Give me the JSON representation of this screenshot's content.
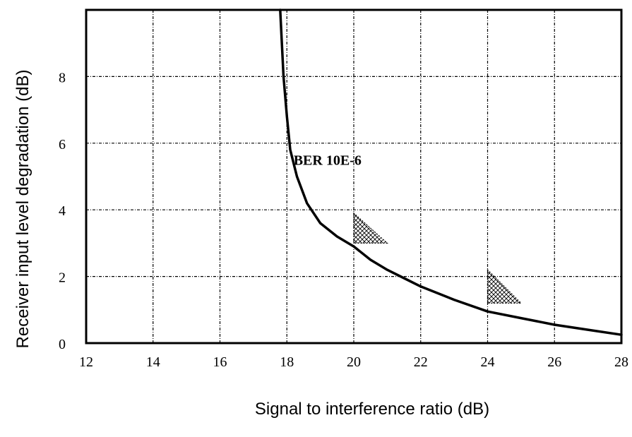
{
  "chart_data": {
    "type": "line",
    "title": "",
    "xlabel": "Signal to interference ratio (dB)",
    "ylabel": "Receiver input level degradation (dB)",
    "xlim": [
      12,
      28
    ],
    "ylim": [
      0,
      10
    ],
    "x_ticks": [
      "12",
      "14",
      "16",
      "18",
      "20",
      "22",
      "24",
      "26",
      "28"
    ],
    "y_ticks": [
      "0",
      "2",
      "4",
      "6",
      "8"
    ],
    "grid": true,
    "series": [
      {
        "name": "BER 10E-6",
        "x": [
          17.8,
          17.9,
          18.0,
          18.1,
          18.3,
          18.6,
          19.0,
          19.5,
          20.0,
          20.5,
          21.0,
          21.5,
          22.0,
          23.0,
          24.0,
          25.0,
          26.0,
          27.0,
          28.0
        ],
        "y": [
          10.0,
          8.0,
          6.8,
          5.8,
          5.0,
          4.2,
          3.6,
          3.2,
          2.9,
          2.5,
          2.2,
          1.95,
          1.7,
          1.3,
          0.95,
          0.75,
          0.55,
          0.4,
          0.25
        ]
      }
    ],
    "annotations": [
      {
        "text": "BER 10E-6",
        "x": 18.2,
        "y": 5.5
      }
    ],
    "hatched_regions": [
      {
        "points": [
          [
            20.0,
            3.9
          ],
          [
            20.0,
            3.0
          ],
          [
            21.0,
            3.0
          ]
        ]
      },
      {
        "points": [
          [
            24.0,
            2.2
          ],
          [
            24.0,
            1.2
          ],
          [
            25.0,
            1.2
          ]
        ]
      }
    ]
  }
}
